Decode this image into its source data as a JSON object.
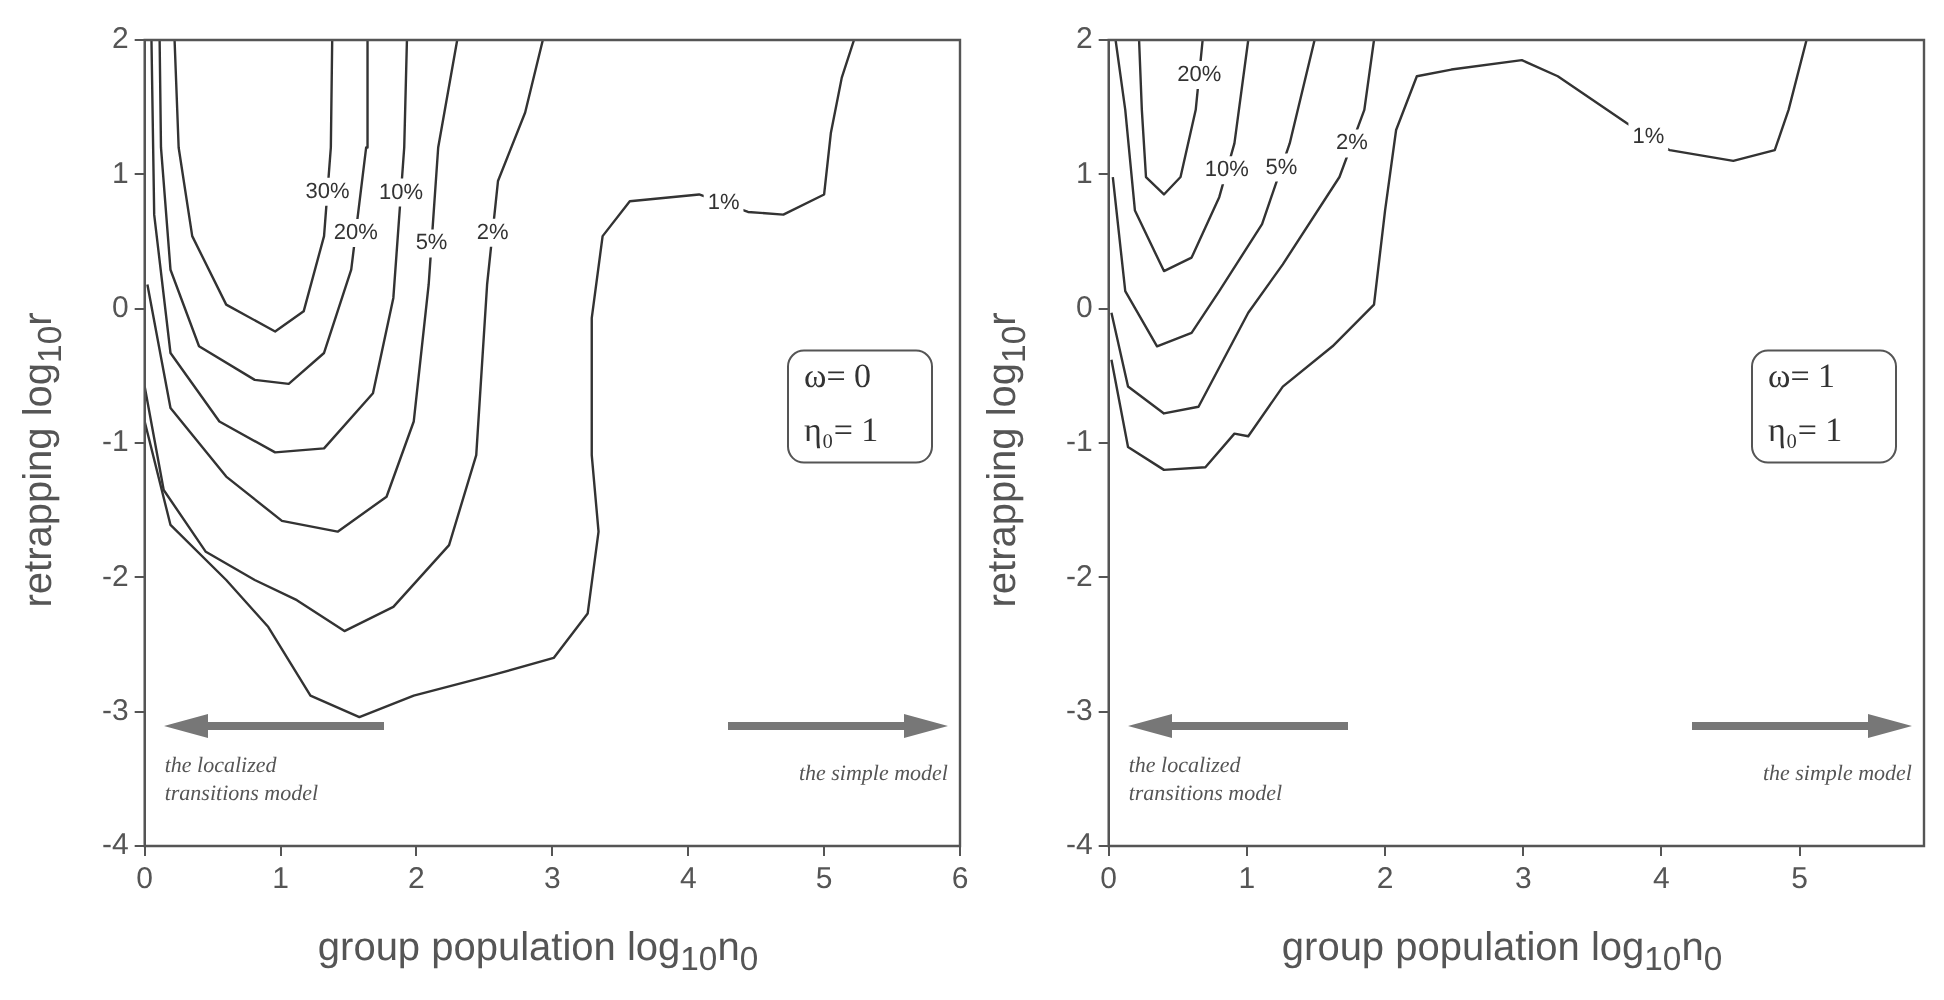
{
  "chart_data": [
    {
      "type": "line",
      "xlabel": "group population  log$_{10}$n$_{0}$",
      "ylabel": "retrapping  log$_{10}$r",
      "xlim": [
        0,
        6
      ],
      "xticks": [
        0,
        1,
        2,
        3,
        4,
        5,
        6
      ],
      "ylim": [
        -4,
        2
      ],
      "yticks": [
        -4,
        -3,
        -2,
        -1,
        0,
        1,
        2
      ],
      "grid": false,
      "legend": false,
      "marker": "none",
      "line_style": "solid",
      "annotations": [
        "ω= 0",
        "η₀= 1",
        "the localized transitions model",
        "the simple model"
      ],
      "series": [
        {
          "name": "30%",
          "color": "#333333",
          "x": [
            0.22,
            0.25,
            0.35,
            0.6,
            0.96,
            1.17,
            1.32,
            1.37,
            1.38
          ],
          "values": [
            2,
            1.2,
            0.54,
            0.03,
            -0.17,
            -0.02,
            0.54,
            1.2,
            2
          ]
        },
        {
          "name": "20%",
          "color": "#333333",
          "x": [
            0.11,
            0.12,
            0.19,
            0.4,
            0.81,
            1.06,
            1.32,
            1.52,
            1.63,
            1.64
          ],
          "values": [
            2,
            1.2,
            0.29,
            -0.28,
            -0.53,
            -0.56,
            -0.33,
            0.29,
            1.2,
            2
          ]
        },
        {
          "name": "10%",
          "color": "#333333",
          "x": [
            0.05,
            0.07,
            0.19,
            0.55,
            0.96,
            1.32,
            1.68,
            1.83,
            1.91,
            1.93
          ],
          "values": [
            2,
            0.7,
            -0.33,
            -0.84,
            -1.07,
            -1.04,
            -0.63,
            0.08,
            1.2,
            2
          ]
        },
        {
          "name": "5%",
          "color": "#333333",
          "x": [
            0.02,
            0.19,
            0.6,
            1.01,
            1.42,
            1.78,
            1.98,
            2.09,
            2.16,
            2.3
          ],
          "values": [
            0.18,
            -0.74,
            -1.25,
            -1.58,
            -1.66,
            -1.4,
            -0.84,
            0.18,
            1.2,
            2
          ]
        },
        {
          "name": "2%",
          "color": "#333333",
          "x": [
            0,
            0.14,
            0.45,
            0.81,
            1.12,
            1.47,
            1.83,
            2.24,
            2.44,
            2.52,
            2.6,
            2.8,
            2.93
          ],
          "values": [
            -0.58,
            -1.35,
            -1.81,
            -2.02,
            -2.17,
            -2.4,
            -2.22,
            -1.76,
            -1.09,
            0.18,
            0.95,
            1.46,
            2
          ]
        },
        {
          "name": "1%",
          "color": "#333333",
          "x": [
            0,
            0.19,
            0.6,
            0.91,
            1.22,
            1.58,
            1.98,
            2.55,
            3.01,
            3.26,
            3.34,
            3.29,
            3.29,
            3.37,
            3.57,
            4.08,
            4.44,
            4.7,
            5,
            5.05,
            5.13,
            5.22
          ],
          "values": [
            -0.84,
            -1.61,
            -2.02,
            -2.37,
            -2.88,
            -3.04,
            -2.88,
            -2.73,
            -2.6,
            -2.27,
            -1.66,
            -1.09,
            -0.07,
            0.54,
            0.8,
            0.85,
            0.72,
            0.7,
            0.85,
            1.31,
            1.72,
            2
          ]
        }
      ]
    },
    {
      "type": "line",
      "xlabel": "group population  log$_{10}$n$_{0}$",
      "ylabel": "retrapping  log$_{10}$r",
      "xlim": [
        0,
        5.9
      ],
      "xticks": [
        0,
        1,
        2,
        3,
        4,
        5
      ],
      "ylim": [
        -4,
        2
      ],
      "yticks": [
        -4,
        -3,
        -2,
        -1,
        0,
        1,
        2
      ],
      "grid": false,
      "legend": false,
      "marker": "none",
      "line_style": "solid",
      "annotations": [
        "ω= 1",
        "η₀= 1",
        "the localized transitions model",
        "the simple model"
      ],
      "series": [
        {
          "name": "20%",
          "color": "#333333",
          "x": [
            0.22,
            0.24,
            0.27,
            0.4,
            0.52,
            0.63,
            0.68
          ],
          "values": [
            2,
            1.48,
            0.98,
            0.85,
            0.98,
            1.48,
            2
          ]
        },
        {
          "name": "10%",
          "color": "#333333",
          "x": [
            0.05,
            0.12,
            0.19,
            0.4,
            0.6,
            0.8,
            0.91,
            1.01
          ],
          "values": [
            2,
            1.48,
            0.73,
            0.28,
            0.38,
            0.83,
            1.23,
            2
          ]
        },
        {
          "name": "5%",
          "color": "#333333",
          "x": [
            0.03,
            0.12,
            0.35,
            0.6,
            0.8,
            1.11,
            1.31,
            1.49
          ],
          "values": [
            0.98,
            0.13,
            -0.28,
            -0.18,
            0.13,
            0.63,
            1.23,
            2
          ]
        },
        {
          "name": "2%",
          "color": "#333333",
          "x": [
            0.02,
            0.14,
            0.4,
            0.65,
            1.01,
            1.26,
            1.67,
            1.85,
            1.92
          ],
          "values": [
            -0.03,
            -0.58,
            -0.78,
            -0.73,
            -0.03,
            0.33,
            0.98,
            1.48,
            2
          ]
        },
        {
          "name": "1%",
          "color": "#333333",
          "x": [
            0.02,
            0.14,
            0.4,
            0.7,
            0.91,
            1.01,
            1.26,
            1.62,
            1.92,
            2.0,
            2.08,
            2.23,
            2.48,
            2.99,
            3.25,
            3.75,
            4.06,
            4.52,
            4.82,
            4.92,
            5.05
          ],
          "values": [
            -0.38,
            -1.03,
            -1.2,
            -1.18,
            -0.93,
            -0.95,
            -0.58,
            -0.28,
            0.03,
            0.73,
            1.33,
            1.73,
            1.78,
            1.85,
            1.73,
            1.38,
            1.18,
            1.1,
            1.18,
            1.48,
            2
          ]
        }
      ]
    }
  ]
}
